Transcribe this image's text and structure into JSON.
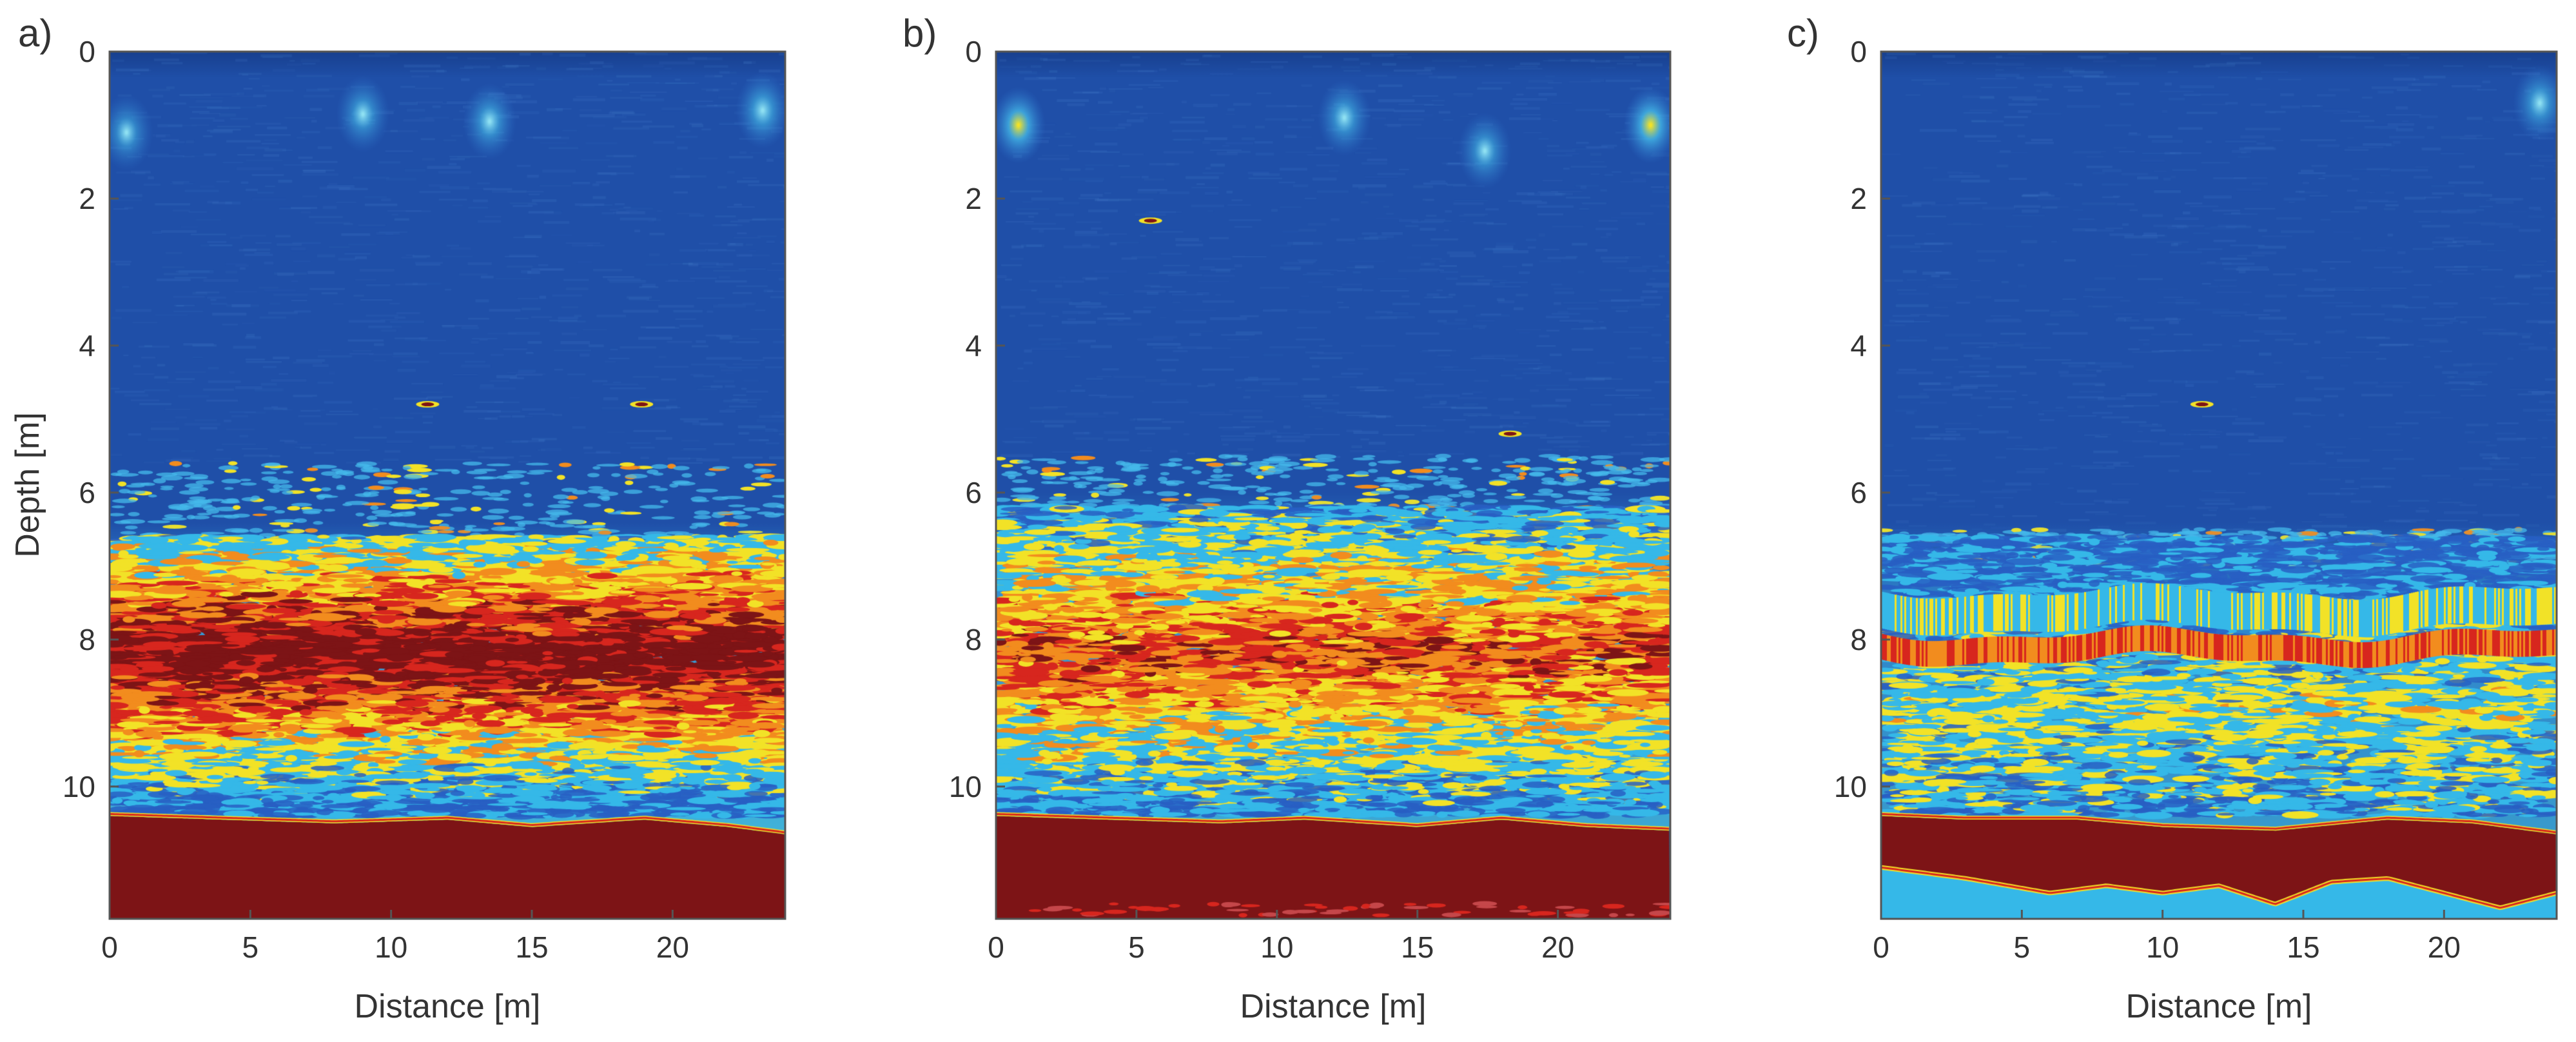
{
  "colors": {
    "water": "#1f4fa8",
    "water_dark": "#18408f",
    "cyan": "#35b8e8",
    "yellow": "#f2e227",
    "orange": "#f28c1e",
    "red": "#d7261e",
    "dark_red": "#7d1416",
    "axis": "#555555"
  },
  "chart_data": [
    {
      "type": "heatmap",
      "panel_label": "a)",
      "title": "",
      "xlabel": "Distance [m]",
      "ylabel": "Depth [m]",
      "xlim": [
        0,
        24
      ],
      "ylim": [
        11.8,
        0
      ],
      "xticks": [
        0,
        5,
        10,
        15,
        20
      ],
      "yticks": [
        0,
        2,
        4,
        6,
        8,
        10
      ],
      "xtick_labels": [
        "0",
        "5",
        "10",
        "15",
        "20"
      ],
      "ytick_labels": [
        "0",
        "2",
        "4",
        "6",
        "8",
        "10"
      ],
      "grid": false,
      "seed": 11,
      "surface_reflections": [
        {
          "x": 0.6,
          "depth": 1.1,
          "intensity": 0.45
        },
        {
          "x": 9.0,
          "depth": 0.85,
          "intensity": 0.5
        },
        {
          "x": 13.5,
          "depth": 0.95,
          "intensity": 0.55
        },
        {
          "x": 23.2,
          "depth": 0.8,
          "intensity": 0.6
        }
      ],
      "point_targets": [
        {
          "x": 11.3,
          "depth": 4.8
        },
        {
          "x": 18.9,
          "depth": 4.8
        }
      ],
      "scatter_onset_depth": 5.6,
      "scatter_zone": {
        "top": 6.6,
        "peak_depth": 8.2,
        "bottom": 10.4,
        "intensity": 1.0
      },
      "layer_bands": [],
      "bottom_profile": [
        [
          0,
          10.4
        ],
        [
          4,
          10.45
        ],
        [
          8,
          10.5
        ],
        [
          12,
          10.45
        ],
        [
          15,
          10.55
        ],
        [
          19,
          10.45
        ],
        [
          22,
          10.55
        ],
        [
          24,
          10.65
        ]
      ],
      "bottom_second_profile": null,
      "bottom_second_echo": false
    },
    {
      "type": "heatmap",
      "panel_label": "b)",
      "title": "",
      "xlabel": "Distance [m]",
      "ylabel": "",
      "xlim": [
        0,
        24
      ],
      "ylim": [
        11.8,
        0
      ],
      "xticks": [
        0,
        5,
        10,
        15,
        20
      ],
      "yticks": [
        0,
        2,
        4,
        6,
        8,
        10
      ],
      "xtick_labels": [
        "0",
        "5",
        "10",
        "15",
        "20"
      ],
      "ytick_labels": [
        "0",
        "2",
        "4",
        "6",
        "8",
        "10"
      ],
      "grid": false,
      "seed": 23,
      "surface_reflections": [
        {
          "x": 0.8,
          "depth": 1.0,
          "intensity": 0.9
        },
        {
          "x": 12.4,
          "depth": 0.9,
          "intensity": 0.55
        },
        {
          "x": 17.4,
          "depth": 1.35,
          "intensity": 0.5
        },
        {
          "x": 23.3,
          "depth": 1.0,
          "intensity": 0.95
        }
      ],
      "point_targets": [
        {
          "x": 5.5,
          "depth": 2.3
        },
        {
          "x": 18.3,
          "depth": 5.2
        }
      ],
      "scatter_onset_depth": 5.5,
      "scatter_zone": {
        "top": 6.2,
        "peak_depth": 8.2,
        "bottom": 10.4,
        "intensity": 0.72
      },
      "layer_bands": [],
      "bottom_profile": [
        [
          0,
          10.4
        ],
        [
          4,
          10.45
        ],
        [
          8,
          10.5
        ],
        [
          11,
          10.45
        ],
        [
          15,
          10.55
        ],
        [
          18,
          10.45
        ],
        [
          21,
          10.55
        ],
        [
          24,
          10.6
        ]
      ],
      "bottom_second_profile": null,
      "bottom_second_echo": true
    },
    {
      "type": "heatmap",
      "panel_label": "c)",
      "title": "",
      "xlabel": "Distance [m]",
      "ylabel": "",
      "xlim": [
        0,
        24
      ],
      "ylim": [
        11.8,
        0
      ],
      "xticks": [
        0,
        5,
        10,
        15,
        20
      ],
      "yticks": [
        0,
        2,
        4,
        6,
        8,
        10
      ],
      "xtick_labels": [
        "0",
        "5",
        "10",
        "15",
        "20"
      ],
      "ytick_labels": [
        "0",
        "2",
        "4",
        "6",
        "8",
        "10"
      ],
      "grid": false,
      "seed": 37,
      "surface_reflections": [
        {
          "x": 23.4,
          "depth": 0.7,
          "intensity": 0.55
        }
      ],
      "point_targets": [
        {
          "x": 11.4,
          "depth": 4.8
        }
      ],
      "scatter_onset_depth": 6.5,
      "scatter_zone": {
        "top": 6.6,
        "peak_depth": 9.0,
        "bottom": 10.4,
        "intensity": 0.32
      },
      "layer_bands": [
        {
          "depth": 8.1,
          "thickness": 0.35,
          "intensity": 0.88
        },
        {
          "depth": 7.6,
          "thickness": 0.5,
          "intensity": 0.42
        }
      ],
      "bottom_profile": [
        [
          0,
          10.4
        ],
        [
          3,
          10.45
        ],
        [
          7,
          10.45
        ],
        [
          10,
          10.55
        ],
        [
          14,
          10.6
        ],
        [
          18,
          10.45
        ],
        [
          21,
          10.5
        ],
        [
          24,
          10.65
        ]
      ],
      "bottom_second_profile": [
        [
          0,
          11.1
        ],
        [
          3,
          11.25
        ],
        [
          6,
          11.45
        ],
        [
          8,
          11.35
        ],
        [
          10,
          11.45
        ],
        [
          12,
          11.35
        ],
        [
          14,
          11.6
        ],
        [
          16,
          11.3
        ],
        [
          18,
          11.25
        ],
        [
          20,
          11.45
        ],
        [
          22,
          11.65
        ],
        [
          24,
          11.45
        ]
      ],
      "bottom_second_echo": false
    }
  ]
}
